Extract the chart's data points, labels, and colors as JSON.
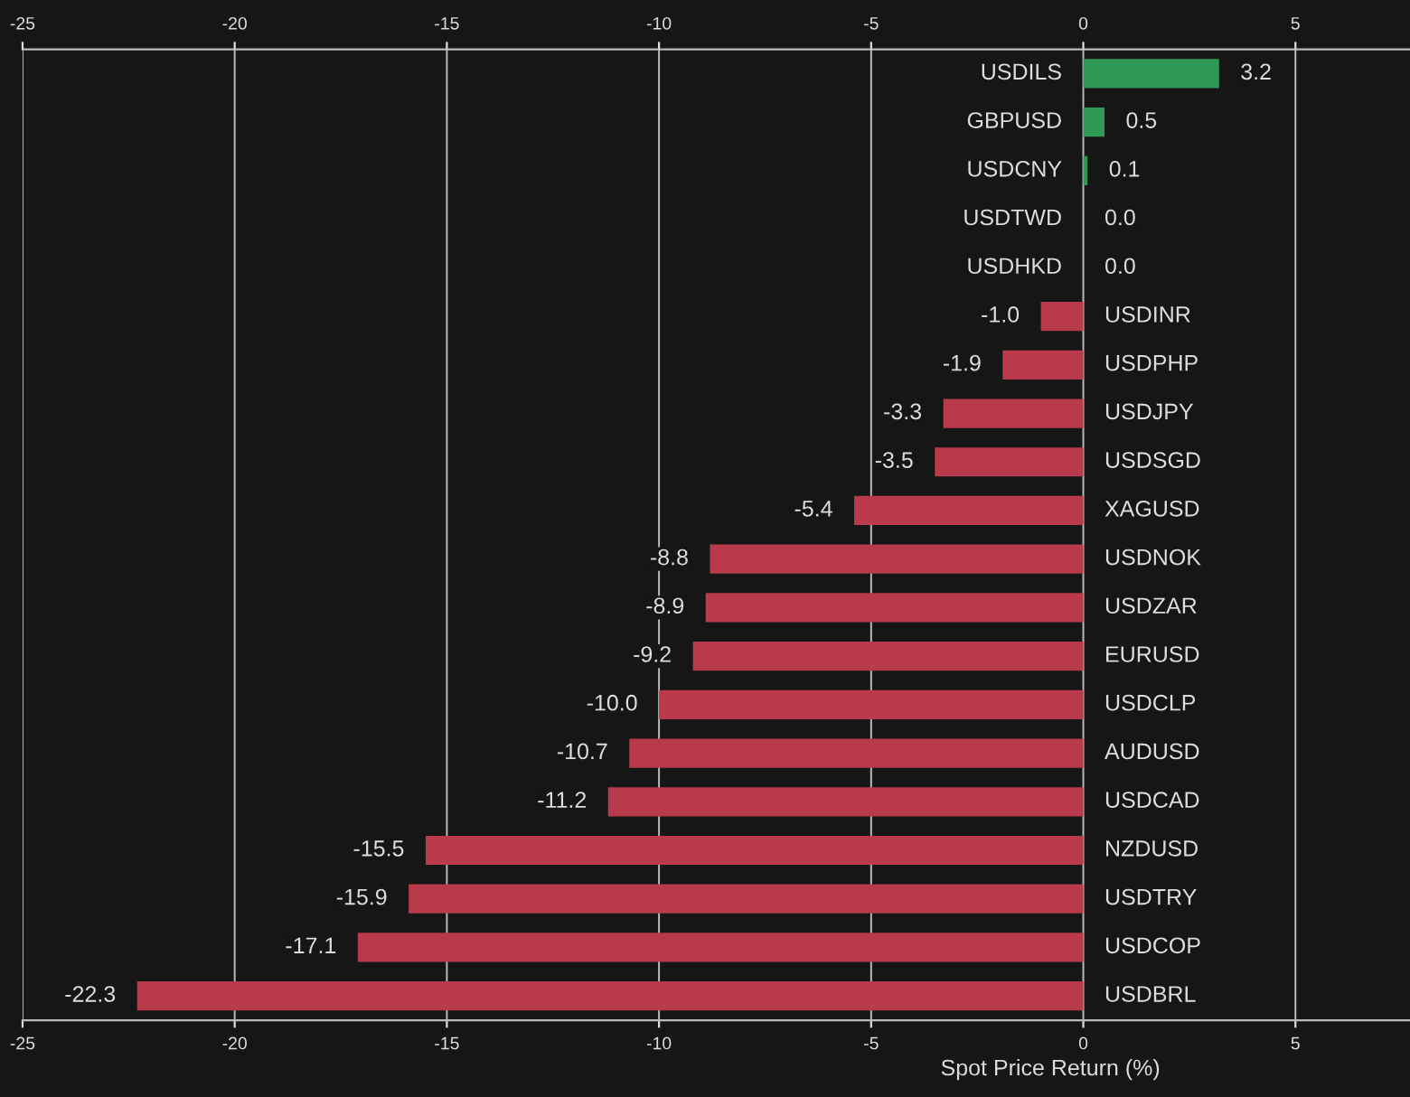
{
  "chart_data": {
    "type": "bar",
    "orientation": "horizontal",
    "xlabel": "Spot Price Return (%)",
    "categories": [
      "USDILS",
      "GBPUSD",
      "USDCNY",
      "USDTWD",
      "USDHKD",
      "USDINR",
      "USDPHP",
      "USDJPY",
      "USDSGD",
      "XAGUSD",
      "USDNOK",
      "USDZAR",
      "EURUSD",
      "USDCLP",
      "AUDUSD",
      "USDCAD",
      "NZDUSD",
      "USDTRY",
      "USDCOP",
      "USDBRL"
    ],
    "values": [
      3.2,
      0.5,
      0.1,
      0.0,
      0.0,
      -1.0,
      -1.9,
      -3.3,
      -3.5,
      -5.4,
      -8.8,
      -8.9,
      -9.2,
      -10.0,
      -10.7,
      -11.2,
      -15.5,
      -15.9,
      -17.1,
      -22.3
    ],
    "colors": [
      "#2e9a55",
      "#2e9a55",
      "#2e9a55",
      "#2e9a55",
      "#2e9a55",
      "#b83a4b",
      "#b83a4b",
      "#b83a4b",
      "#b83a4b",
      "#b83a4b",
      "#b83a4b",
      "#b83a4b",
      "#b83a4b",
      "#b83a4b",
      "#b83a4b",
      "#b83a4b",
      "#b83a4b",
      "#b83a4b",
      "#b83a4b",
      "#b83a4b"
    ],
    "value_labels": [
      "3.2",
      "0.5",
      "0.1",
      "0.0",
      "0.0",
      "-1.0",
      "-1.9",
      "-3.3",
      "-3.5",
      "-5.4",
      "-8.8",
      "-8.9",
      "-9.2",
      "-10.0",
      "-10.7",
      "-11.2",
      "-15.5",
      "-15.9",
      "-17.1",
      "-22.3"
    ],
    "xlim": [
      -25,
      7.7
    ],
    "xticks": [
      -25,
      -20,
      -15,
      -10,
      -5,
      0,
      5
    ],
    "x2lim": [
      -25,
      7.7
    ],
    "x2ticks": [
      -25,
      -20,
      -15,
      -10,
      -5,
      0,
      5
    ],
    "grid": "x"
  }
}
